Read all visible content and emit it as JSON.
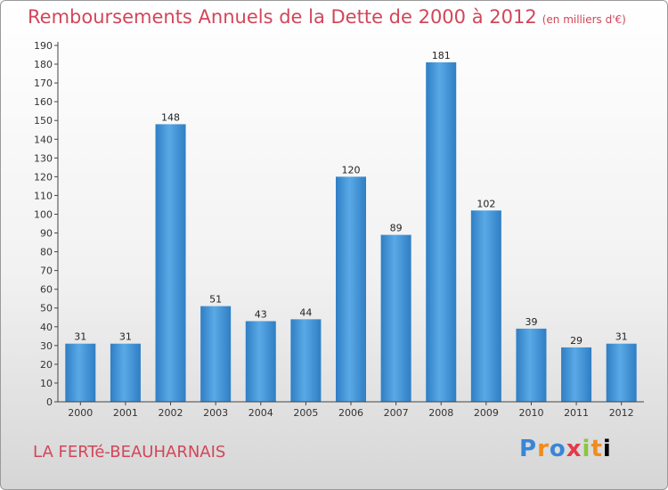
{
  "title": "Remboursements Annuels de la Dette de 2000 à 2012",
  "unit": "(en milliers d'€)",
  "commune": "LA FERTé-BEAUHARNAIS",
  "logo_text": "Proxiti",
  "colors": {
    "bar": "#3d8fd6",
    "title": "#d2465a"
  },
  "chart_data": {
    "type": "bar",
    "title": "Remboursements Annuels de la Dette de 2000 à 2012",
    "subtitle": "(en milliers d'€)",
    "xlabel": "",
    "ylabel": "",
    "categories": [
      "2000",
      "2001",
      "2002",
      "2003",
      "2004",
      "2005",
      "2006",
      "2007",
      "2008",
      "2009",
      "2010",
      "2011",
      "2012"
    ],
    "values": [
      31,
      31,
      148,
      51,
      43,
      44,
      120,
      89,
      181,
      102,
      39,
      29,
      31
    ],
    "ylim": [
      0,
      190
    ],
    "ytick_step": 10,
    "grid": false,
    "data_labels": true
  }
}
